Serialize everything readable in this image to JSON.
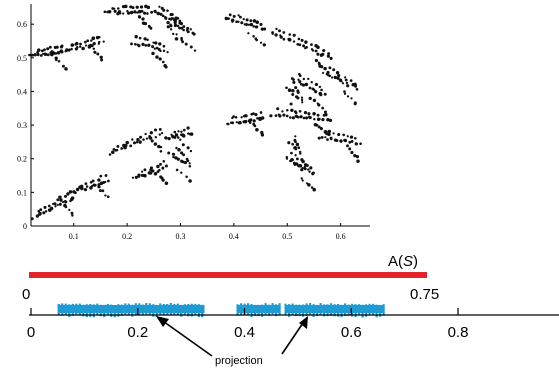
{
  "scatter_plot": {
    "x_ticks": [
      "0.1",
      "0.2",
      "0.3",
      "0.4",
      "0.5",
      "0.6"
    ],
    "x_tick_values": [
      0.1,
      0.2,
      0.3,
      0.4,
      0.5,
      0.6
    ],
    "y_ticks": [
      "0",
      "0.1",
      "0.2",
      "0.3",
      "0.4",
      "0.5",
      "0.6"
    ],
    "y_tick_values": [
      0,
      0.1,
      0.2,
      0.3,
      0.4,
      0.5,
      0.6
    ],
    "xlim": [
      0.02,
      0.655
    ],
    "ylim": [
      0,
      0.66
    ],
    "point_color": "#111111"
  },
  "attractor_bar": {
    "label_main": "A(",
    "label_italic": "S",
    "label_close": ")",
    "start_label": "0",
    "end_label": "0.75",
    "start": 0,
    "end": 0.75,
    "color": "#e3222b"
  },
  "projection_axis": {
    "ticks": [
      "0",
      "0.2",
      "0.4",
      "0.6",
      "0.8"
    ],
    "tick_values": [
      0,
      0.2,
      0.4,
      0.6,
      0.8
    ],
    "segments": [
      [
        0.05,
        0.325
      ],
      [
        0.385,
        0.465
      ],
      [
        0.475,
        0.66
      ]
    ],
    "color": "#1f9bd3",
    "annotation": "projection"
  }
}
